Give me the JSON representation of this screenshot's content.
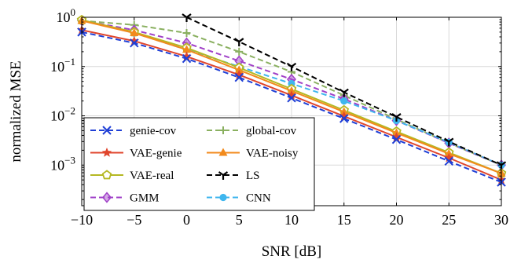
{
  "chart_data": {
    "type": "line",
    "xlabel": "SNR [dB]",
    "ylabel": "normalized MSE",
    "xlim": [
      -10,
      30
    ],
    "ylim": [
      0.00015,
      1
    ],
    "yscale": "log",
    "grid": true,
    "legend_position": "bottom-left",
    "x_ticks": [
      -10,
      -5,
      0,
      5,
      10,
      15,
      20,
      25,
      30
    ],
    "x_tick_labels": [
      "−10",
      "−5",
      "0",
      "5",
      "10",
      "15",
      "20",
      "25",
      "30"
    ],
    "y_ticks": [
      0.001,
      0.01,
      0.1,
      1
    ],
    "y_tick_labels": [
      {
        "base": "10",
        "exp": "−3"
      },
      {
        "base": "10",
        "exp": "−2"
      },
      {
        "base": "10",
        "exp": "−1"
      },
      {
        "base": "10",
        "exp": "0"
      }
    ],
    "series": [
      {
        "name": "genie-cov",
        "color": "#1f3fd6",
        "dash": true,
        "marker": "x",
        "x": [
          -10,
          -5,
          0,
          5,
          10,
          15,
          20,
          25,
          30
        ],
        "y": [
          0.5,
          0.3,
          0.145,
          0.06,
          0.023,
          0.0088,
          0.0033,
          0.0012,
          0.00045
        ]
      },
      {
        "name": "global-cov",
        "color": "#8ab060",
        "dash": true,
        "marker": "hbar",
        "x": [
          -10,
          -5,
          0,
          5,
          10,
          15,
          20,
          25,
          30
        ],
        "y": [
          0.85,
          0.7,
          0.48,
          0.2,
          0.078,
          0.026,
          0.0085,
          0.0028,
          0.001
        ]
      },
      {
        "name": "VAE-genie",
        "color": "#e0452c",
        "dash": false,
        "marker": "star",
        "x": [
          -10,
          -5,
          0,
          5,
          10,
          15,
          20,
          25,
          30
        ],
        "y": [
          0.55,
          0.33,
          0.16,
          0.068,
          0.026,
          0.0098,
          0.0037,
          0.0014,
          0.0005
        ]
      },
      {
        "name": "VAE-noisy",
        "color": "#f28a1c",
        "dash": false,
        "marker": "triangle",
        "x": [
          -10,
          -5,
          0,
          5,
          10,
          15,
          20,
          25,
          30
        ],
        "y": [
          0.85,
          0.48,
          0.22,
          0.085,
          0.032,
          0.012,
          0.0045,
          0.0017,
          0.00068
        ]
      },
      {
        "name": "VAE-real",
        "color": "#b5b823",
        "dash": false,
        "marker": "pentagon",
        "x": [
          -10,
          -5,
          0,
          5,
          10,
          15,
          20,
          25,
          30
        ],
        "y": [
          0.88,
          0.5,
          0.24,
          0.095,
          0.035,
          0.013,
          0.0048,
          0.0018,
          0.00068
        ]
      },
      {
        "name": "LS",
        "color": "#000000",
        "dash": true,
        "marker": "tri",
        "x": [
          0,
          5,
          10,
          15,
          20,
          25,
          30
        ],
        "y": [
          1.0,
          0.32,
          0.1,
          0.03,
          0.0095,
          0.003,
          0.001
        ]
      },
      {
        "name": "GMM",
        "color": "#a040c8",
        "dash": true,
        "marker": "diamond",
        "x": [
          -10,
          -5,
          0,
          5,
          10,
          15,
          20,
          25,
          30
        ],
        "y": [
          0.86,
          0.55,
          0.3,
          0.13,
          0.055,
          0.022,
          0.008,
          0.0028,
          0.001
        ]
      },
      {
        "name": "CNN",
        "color": "#3fb6ee",
        "dash": true,
        "marker": "circle",
        "x": [
          -10,
          -5,
          0,
          5,
          10,
          15,
          20,
          25,
          30
        ],
        "y": [
          0.88,
          0.48,
          0.22,
          0.1,
          0.045,
          0.02,
          0.008,
          0.0029,
          0.001
        ]
      }
    ]
  }
}
